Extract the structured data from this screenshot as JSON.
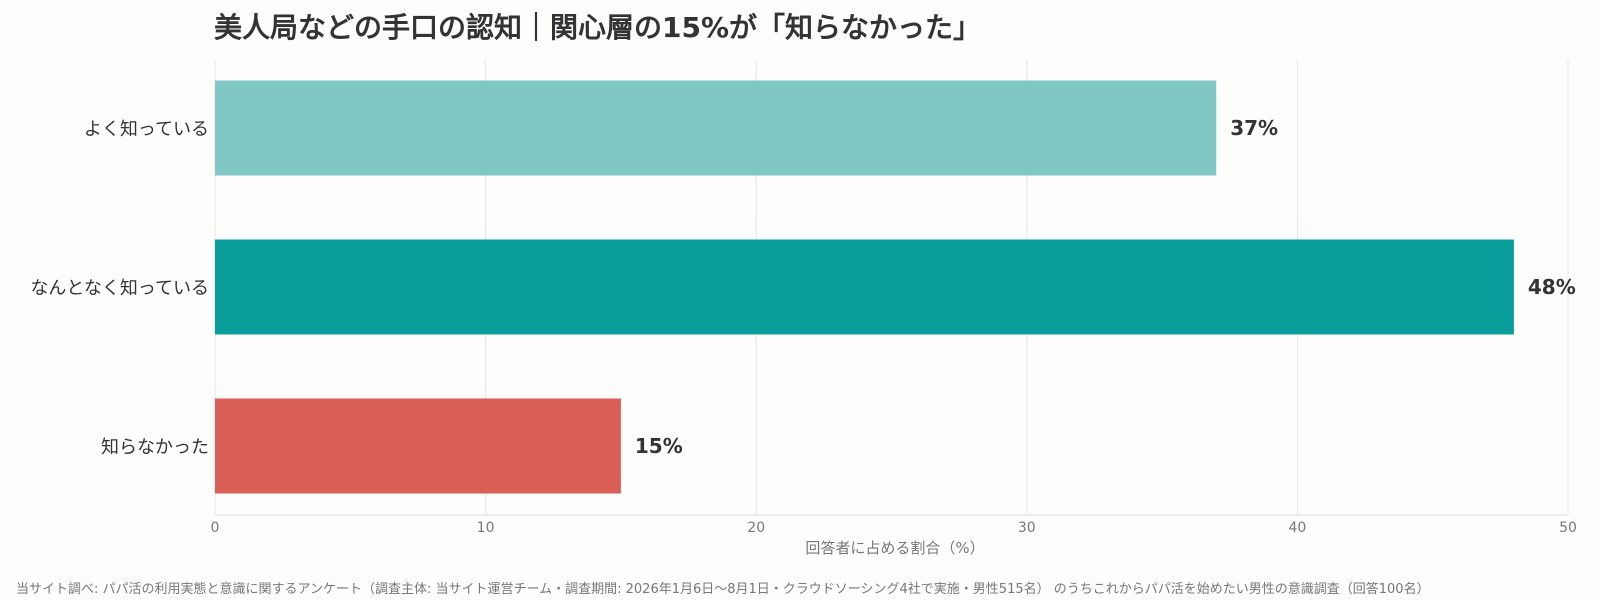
{
  "chart_data": {
    "type": "bar",
    "orientation": "horizontal",
    "title": "美人局などの手口の認知｜関心層の15%が「知らなかった」",
    "categories": [
      "よく知っている",
      "なんとなく知っている",
      "知らなかった"
    ],
    "values": [
      37,
      48,
      15
    ],
    "value_labels": [
      "37%",
      "48%",
      "15%"
    ],
    "colors": [
      "#7fc6c5",
      "#0a9e9b",
      "#d95f57"
    ],
    "xlabel": "回答者に占める割合（%）",
    "ylabel": "",
    "xlim": [
      0,
      50
    ],
    "xticks": [
      0,
      10,
      20,
      30,
      40,
      50
    ],
    "grid": true,
    "footnote": "当サイト調べ: パパ活の利用実態と意識に関するアンケート（調査主体: 当サイト運営チーム・調査期間: 2026年1月6日〜8月1日・クラウドソーシング4社で実施・男性515名） のうちこれからパパ活を始めたい男性の意識調査（回答100名）"
  }
}
